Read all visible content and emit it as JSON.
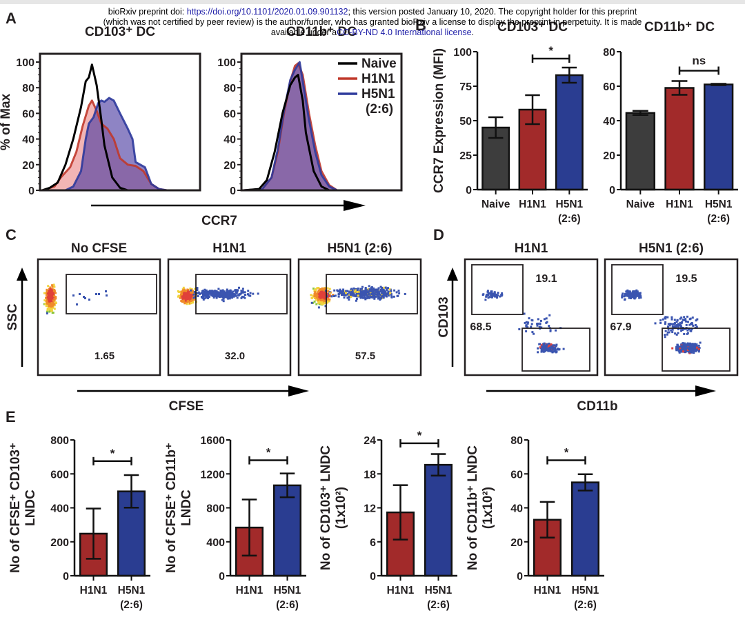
{
  "notice": {
    "line1_prefix": "bioRxiv preprint doi: ",
    "doi_link": "https://doi.org/10.1101/2020.01.09.901132",
    "line1_suffix": "; this version posted January 10, 2020. The copyright holder for this preprint",
    "line2": "(which was not certified by peer review) is the author/funder, who has granted bioRxiv a license to display the preprint in perpetuity. It is made",
    "line3_prefix": "available under a",
    "license_link": "CC-BY-ND 4.0 International license",
    "line3_suffix": "."
  },
  "panel_letters": {
    "A": "A",
    "B": "B",
    "C": "C",
    "D": "D",
    "E": "E"
  },
  "colors": {
    "naive": "#3d3d3d",
    "h1n1": "#a22a2a",
    "h5n1": "#2a3d91",
    "naive_line": "#000000",
    "h1n1_line": "#c0392b",
    "h5n1_line": "#2e3a9c",
    "dot_blue": "#3b55b0",
    "dot_red": "#e0413a",
    "dot_yellow": "#f2d33c",
    "dot_green": "#8cc63f",
    "dot_orange": "#f08a2a"
  },
  "chart_data": [
    {
      "id": "A-left",
      "type": "area",
      "title": "CD103⁺ DC",
      "xlabel": "CCR7",
      "ylabel": "% of Max",
      "ylim": [
        0,
        100
      ],
      "yticks": [
        "0",
        "20",
        "40",
        "60",
        "80",
        "100"
      ],
      "series": [
        {
          "name": "Naive",
          "color_key": "naive_line",
          "fill": false,
          "x": [
            0,
            5,
            10,
            15,
            20,
            25,
            28,
            30,
            32,
            35,
            38,
            40,
            45,
            50,
            55,
            60,
            70,
            80,
            100
          ],
          "y": [
            0,
            2,
            6,
            20,
            40,
            65,
            85,
            88,
            98,
            82,
            55,
            35,
            10,
            2,
            0,
            0,
            0,
            0,
            0
          ]
        },
        {
          "name": "H1N1",
          "color_key": "h1n1_line",
          "fill": true,
          "x": [
            0,
            8,
            12,
            18,
            22,
            26,
            30,
            32,
            35,
            38,
            42,
            46,
            50,
            55,
            60,
            65,
            70,
            75,
            80,
            100
          ],
          "y": [
            0,
            3,
            10,
            18,
            30,
            50,
            66,
            70,
            62,
            52,
            48,
            40,
            25,
            20,
            19,
            15,
            5,
            1,
            0,
            0
          ]
        },
        {
          "name": "H5N1 (2:6)",
          "color_key": "h5n1_line",
          "fill": true,
          "x": [
            0,
            15,
            20,
            25,
            28,
            30,
            33,
            36,
            38,
            40,
            43,
            46,
            50,
            55,
            58,
            60,
            63,
            66,
            70,
            75,
            80,
            100
          ],
          "y": [
            0,
            0,
            3,
            15,
            40,
            52,
            57,
            68,
            70,
            69,
            72,
            70,
            60,
            48,
            40,
            22,
            20,
            18,
            5,
            1,
            0,
            0
          ]
        }
      ]
    },
    {
      "id": "A-right",
      "type": "area",
      "title": "CD11b⁺ DC",
      "xlabel": "CCR7",
      "ylabel": "",
      "ylim": [
        0,
        100
      ],
      "yticks": [
        "0",
        "20",
        "40",
        "60",
        "80",
        "100"
      ],
      "legend": {
        "position": "top-right",
        "entries": [
          "Naive",
          "H1N1",
          "H5N1",
          "(2:6)"
        ]
      },
      "series": [
        {
          "name": "Naive",
          "color_key": "naive_line",
          "fill": false,
          "x": [
            0,
            10,
            15,
            20,
            25,
            30,
            33,
            35,
            38,
            40,
            45,
            50,
            55,
            60,
            100
          ],
          "y": [
            0,
            1,
            8,
            30,
            60,
            82,
            88,
            90,
            70,
            45,
            15,
            3,
            0,
            0,
            0
          ]
        },
        {
          "name": "H1N1",
          "color_key": "h1n1_line",
          "fill": true,
          "x": [
            0,
            12,
            18,
            22,
            26,
            30,
            33,
            35,
            38,
            42,
            46,
            50,
            55,
            60,
            100
          ],
          "y": [
            0,
            1,
            10,
            30,
            60,
            85,
            97,
            99,
            90,
            60,
            35,
            15,
            4,
            0,
            0
          ]
        },
        {
          "name": "H5N1 (2:6)",
          "color_key": "h5n1_line",
          "fill": true,
          "x": [
            0,
            12,
            18,
            22,
            26,
            30,
            33,
            36,
            38,
            42,
            46,
            50,
            55,
            60,
            100
          ],
          "y": [
            0,
            1,
            10,
            32,
            62,
            86,
            94,
            100,
            85,
            55,
            30,
            12,
            3,
            0,
            0
          ]
        }
      ]
    },
    {
      "id": "B-left",
      "type": "bar",
      "title": "CD103⁺ DC",
      "ylabel": "CCR7 Expression (MFI)",
      "categories": [
        "Naive",
        "H1N1",
        "H5N1\n(2:6)"
      ],
      "values": [
        45,
        58,
        83
      ],
      "errors": [
        7.5,
        10.5,
        5.5
      ],
      "color_keys": [
        "naive",
        "h1n1",
        "h5n1"
      ],
      "ylim": [
        0,
        100
      ],
      "yticks": [
        "0",
        "25",
        "50",
        "75",
        "100"
      ],
      "significance": {
        "from": 1,
        "to": 2,
        "label": "*",
        "level": 95
      }
    },
    {
      "id": "B-right",
      "type": "bar",
      "title": "CD11b⁺ DC",
      "ylabel": "",
      "categories": [
        "Naive",
        "H1N1",
        "H5N1\n(2:6)"
      ],
      "values": [
        44.5,
        59,
        61
      ],
      "errors": [
        1.2,
        4,
        0.4
      ],
      "color_keys": [
        "naive",
        "h1n1",
        "h5n1"
      ],
      "ylim": [
        0,
        80
      ],
      "yticks": [
        "0",
        "20",
        "40",
        "60",
        "80"
      ],
      "significance": {
        "from": 1,
        "to": 2,
        "label": "ns",
        "level": 69
      }
    },
    {
      "id": "C",
      "type": "scatter",
      "xlabel": "CFSE",
      "ylabel": "SSC",
      "panels": [
        {
          "title": "No CFSE",
          "gate_value": "1.65"
        },
        {
          "title": "H1N1",
          "gate_value": "32.0"
        },
        {
          "title": "H5N1 (2:6)",
          "gate_value": "57.5"
        }
      ]
    },
    {
      "id": "D",
      "type": "scatter",
      "xlabel": "CD11b",
      "ylabel": "CD103",
      "panels": [
        {
          "title": "H1N1",
          "gate_cd103": "19.1",
          "gate_cd11b": "68.5"
        },
        {
          "title": "H5N1 (2:6)",
          "gate_cd103": "19.5",
          "gate_cd11b": "67.9"
        }
      ]
    },
    {
      "id": "E1",
      "type": "bar",
      "ylabel_lines": [
        "No of CFSE⁺ CD103⁺",
        "LNDC"
      ],
      "categories": [
        "H1N1",
        "H5N1\n(2:6)"
      ],
      "values": [
        248,
        497
      ],
      "errors": [
        148,
        96
      ],
      "color_keys": [
        "h1n1",
        "h5n1"
      ],
      "ylim": [
        0,
        800
      ],
      "yticks": [
        "0",
        "200",
        "400",
        "600",
        "800"
      ],
      "significance": {
        "from": 0,
        "to": 1,
        "label": "*",
        "level": 675
      }
    },
    {
      "id": "E2",
      "type": "bar",
      "ylabel_lines": [
        "No of CFSE⁺ CD11b⁺",
        "LNDC"
      ],
      "categories": [
        "H1N1",
        "H5N1\n(2:6)"
      ],
      "values": [
        568,
        1065
      ],
      "errors": [
        330,
        140
      ],
      "color_keys": [
        "h1n1",
        "h5n1"
      ],
      "ylim": [
        0,
        1600
      ],
      "yticks": [
        "0",
        "400",
        "800",
        "1200",
        "1600"
      ],
      "significance": {
        "from": 0,
        "to": 1,
        "label": "*",
        "level": 1360
      }
    },
    {
      "id": "E3",
      "type": "bar",
      "ylabel_lines": [
        "No of  CD103⁺ LNDC",
        "(1x10²)"
      ],
      "categories": [
        "H1N1",
        "H5N1\n(2:6)"
      ],
      "values": [
        11.2,
        19.6
      ],
      "errors": [
        4.8,
        1.9
      ],
      "color_keys": [
        "h1n1",
        "h5n1"
      ],
      "ylim": [
        0,
        24
      ],
      "yticks": [
        "0",
        "6",
        "12",
        "18",
        "24"
      ],
      "significance": {
        "from": 0,
        "to": 1,
        "label": "*",
        "level": 23.4
      }
    },
    {
      "id": "E4",
      "type": "bar",
      "ylabel_lines": [
        "No of  CD11b⁺ LNDC",
        "(1x10²)"
      ],
      "categories": [
        "H1N1",
        "H5N1\n(2:6)"
      ],
      "values": [
        33,
        55
      ],
      "errors": [
        10.5,
        4.8
      ],
      "color_keys": [
        "h1n1",
        "h5n1"
      ],
      "ylim": [
        0,
        80
      ],
      "yticks": [
        "0",
        "20",
        "40",
        "60",
        "80"
      ],
      "significance": {
        "from": 0,
        "to": 1,
        "label": "*",
        "level": 68
      }
    }
  ]
}
